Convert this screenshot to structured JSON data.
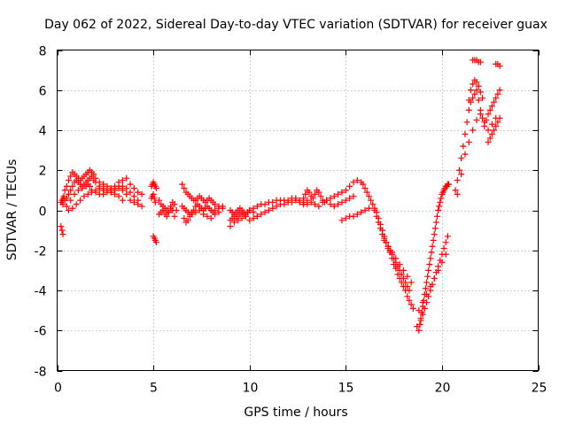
{
  "chart_data": {
    "type": "scatter",
    "title": "Day 062 of 2022, Sidereal Day-to-day VTEC variation (SDTVAR) for receiver guax",
    "xlabel": "GPS time / hours",
    "ylabel": "SDTVAR / TECUs",
    "xlim": [
      0,
      25
    ],
    "ylim": [
      -8,
      8
    ],
    "xticks": [
      0,
      5,
      10,
      15,
      20,
      25
    ],
    "xtick_labels": [
      "0",
      "5",
      "10",
      "15",
      "20",
      "25"
    ],
    "yticks": [
      -8,
      -6,
      -4,
      -2,
      0,
      2,
      4,
      6,
      8
    ],
    "ytick_labels": [
      "-8",
      "-6",
      "-4",
      "-2",
      "0",
      "2",
      "4",
      "6",
      "8"
    ],
    "grid": true,
    "marker": "plus",
    "color": "#ff0000",
    "series": [
      {
        "name": "SDTVAR",
        "x": [
          0.2,
          0.25,
          0.3,
          0.35,
          0.4,
          0.5,
          0.6,
          0.7,
          0.8,
          0.9,
          1.0,
          1.1,
          1.2,
          1.3,
          1.4,
          1.5,
          1.6,
          1.7,
          1.8,
          1.9,
          2.0,
          2.2,
          2.4,
          2.6,
          2.8,
          3.0,
          3.2,
          3.4,
          3.6,
          3.8,
          4.0,
          4.2,
          4.4,
          0.3,
          0.4,
          0.5,
          0.6,
          0.7,
          0.8,
          0.9,
          1.0,
          1.1,
          1.2,
          1.3,
          1.4,
          1.5,
          1.6,
          1.7,
          1.8,
          1.9,
          2.0,
          2.2,
          2.4,
          2.6,
          2.8,
          3.0,
          3.2,
          3.4,
          3.6,
          3.8,
          4.0,
          4.2,
          0.5,
          0.7,
          0.9,
          1.1,
          1.3,
          1.5,
          1.6,
          1.7,
          1.8,
          2.0,
          2.2,
          2.4,
          2.6,
          2.8,
          3.0,
          3.2,
          3.4,
          3.6,
          3.8,
          4.0,
          4.2,
          4.4,
          0.6,
          0.8,
          1.0,
          1.2,
          1.4,
          1.6,
          1.8,
          2.0,
          2.2,
          2.4,
          2.6,
          2.8,
          3.0,
          3.2,
          3.4,
          0.2,
          0.25,
          0.3,
          4.9,
          4.95,
          5.0,
          5.05,
          5.1,
          5.15,
          4.9,
          4.95,
          5.0,
          5.05,
          5.1,
          5.0,
          5.05,
          5.1,
          5.15,
          5.3,
          5.4,
          5.5,
          5.6,
          5.7,
          5.8,
          5.9,
          6.0,
          6.1,
          6.2,
          5.3,
          5.4,
          5.5,
          5.6,
          5.7,
          5.8,
          5.9,
          6.0,
          6.1,
          6.5,
          6.6,
          6.7,
          6.8,
          6.9,
          7.0,
          7.1,
          7.2,
          7.3,
          7.4,
          7.5,
          7.6,
          7.7,
          7.8,
          7.9,
          8.0,
          8.1,
          8.2,
          8.4,
          8.6,
          6.5,
          6.6,
          6.7,
          6.8,
          6.9,
          7.0,
          7.1,
          7.2,
          7.3,
          7.4,
          7.5,
          7.6,
          7.7,
          7.8,
          7.9,
          8.0,
          8.1,
          8.2,
          8.4,
          8.6,
          6.6,
          6.7,
          6.8,
          6.9,
          7.0,
          7.2,
          7.4,
          7.6,
          7.8,
          8.0,
          8.2,
          8.4,
          9.0,
          9.1,
          9.2,
          9.3,
          9.4,
          9.5,
          9.6,
          9.7,
          9.8,
          9.9,
          10.0,
          10.2,
          10.4,
          10.6,
          10.8,
          11.0,
          11.2,
          11.4,
          11.6,
          11.8,
          12.0,
          12.2,
          12.4,
          12.6,
          12.8,
          13.0,
          9.0,
          9.1,
          9.2,
          9.3,
          9.4,
          9.5,
          9.6,
          9.7,
          9.8,
          9.9,
          10.0,
          10.2,
          10.4,
          10.6,
          10.8,
          11.0,
          11.2,
          11.4,
          11.6,
          11.8,
          12.0,
          12.2,
          12.4,
          12.6,
          12.8,
          9.0,
          9.2,
          9.4,
          9.6,
          9.8,
          10.0,
          10.2,
          10.4,
          12.8,
          12.9,
          13.0,
          13.1,
          13.2,
          13.3,
          13.4,
          13.5,
          13.6,
          13.7,
          13.8,
          13.9,
          14.0,
          14.2,
          14.4,
          14.6,
          14.8,
          15.0,
          15.2,
          15.4,
          15.6,
          12.8,
          13.0,
          13.2,
          13.4,
          13.6,
          13.8,
          14.0,
          14.2,
          14.4,
          14.6,
          14.8,
          15.0,
          15.2,
          15.4,
          14.8,
          15.0,
          15.2,
          15.4,
          15.6,
          15.8,
          16.0,
          16.2,
          15.8,
          15.9,
          16.0,
          16.1,
          16.2,
          16.3,
          16.4,
          16.5,
          16.6,
          16.7,
          16.8,
          16.9,
          17.0,
          17.1,
          17.2,
          17.3,
          17.4,
          17.5,
          17.6,
          17.7,
          17.8,
          17.9,
          18.0,
          18.1,
          18.2,
          18.3,
          18.4,
          18.5,
          16.5,
          16.6,
          16.7,
          16.8,
          16.9,
          17.0,
          17.1,
          17.2,
          17.3,
          17.4,
          17.5,
          17.6,
          17.7,
          17.8,
          17.9,
          18.0,
          18.1,
          18.2,
          18.3,
          17.0,
          17.2,
          17.4,
          17.6,
          17.8,
          18.0,
          18.2,
          18.4,
          18.7,
          18.8,
          18.85,
          18.9,
          18.95,
          19.0,
          19.05,
          19.1,
          19.15,
          19.2,
          19.25,
          19.3,
          19.35,
          19.4,
          19.45,
          19.5,
          19.55,
          19.6,
          19.65,
          19.7,
          19.75,
          19.8,
          19.85,
          19.9,
          19.95,
          20.0,
          20.05,
          20.1,
          20.15,
          20.2,
          20.25,
          20.3,
          20.35,
          18.9,
          19.0,
          19.1,
          19.2,
          19.3,
          19.4,
          19.5,
          19.6,
          19.7,
          19.8,
          19.9,
          20.0,
          20.1,
          20.2,
          20.3,
          18.8,
          19.0,
          19.2,
          19.4,
          19.6,
          19.8,
          20.0,
          20.2,
          20.7,
          20.8,
          20.9,
          21.0,
          21.1,
          21.2,
          21.3,
          21.4,
          21.5,
          21.6,
          21.7,
          21.8,
          21.9,
          22.0,
          22.1,
          22.2,
          22.3,
          22.4,
          22.5,
          22.6,
          22.7,
          22.8,
          22.9,
          23.0,
          20.8,
          21.0,
          21.2,
          21.4,
          21.6,
          21.8,
          22.0,
          22.2,
          22.4,
          22.6,
          22.8,
          21.4,
          21.5,
          21.6,
          21.7,
          21.8,
          21.9,
          22.0,
          22.1,
          21.6,
          21.7,
          21.8,
          21.9,
          22.0,
          22.8,
          22.9,
          23.0,
          22.4,
          22.5,
          22.6,
          22.7,
          22.8,
          22.9,
          23.0
        ],
        "y": [
          0.4,
          0.5,
          0.6,
          0.7,
          1.0,
          1.2,
          1.5,
          1.7,
          1.9,
          1.8,
          1.7,
          1.6,
          1.5,
          1.6,
          1.7,
          1.8,
          1.9,
          2.0,
          1.9,
          1.8,
          1.6,
          1.4,
          1.3,
          1.2,
          1.1,
          1.2,
          1.4,
          1.5,
          1.6,
          1.3,
          1.1,
          0.9,
          0.8,
          0.3,
          0.5,
          0.6,
          0.8,
          1.0,
          1.2,
          1.4,
          1.5,
          1.4,
          1.3,
          1.2,
          1.3,
          1.4,
          1.5,
          1.6,
          1.7,
          1.5,
          1.4,
          1.2,
          1.0,
          1.0,
          0.9,
          1.0,
          1.1,
          1.2,
          1.1,
          0.9,
          0.7,
          0.5,
          0.2,
          0.5,
          0.8,
          1.0,
          1.1,
          1.2,
          1.3,
          1.2,
          1.0,
          0.9,
          0.8,
          0.8,
          0.9,
          1.0,
          1.1,
          1.2,
          1.0,
          0.8,
          0.5,
          0.4,
          0.3,
          0.2,
          0.0,
          0.1,
          0.3,
          0.5,
          0.7,
          0.8,
          0.9,
          1.0,
          1.1,
          1.1,
          1.0,
          0.9,
          0.8,
          0.7,
          0.5,
          -0.8,
          -1.0,
          -1.2,
          1.2,
          1.3,
          1.4,
          1.3,
          1.2,
          1.1,
          0.6,
          0.7,
          0.8,
          0.6,
          0.4,
          -1.3,
          -1.4,
          -1.5,
          -1.6,
          0.5,
          0.3,
          0.2,
          0.1,
          0.0,
          -0.1,
          0.2,
          0.4,
          0.3,
          0.0,
          -0.2,
          -0.1,
          0.0,
          -0.2,
          -0.3,
          -0.1,
          0.1,
          0.0,
          -0.3,
          1.3,
          1.1,
          0.9,
          0.8,
          0.7,
          0.6,
          0.5,
          0.5,
          0.6,
          0.7,
          0.6,
          0.5,
          0.4,
          0.5,
          0.6,
          0.5,
          0.4,
          0.3,
          0.2,
          0.1,
          0.2,
          0.1,
          0.0,
          -0.1,
          -0.2,
          -0.1,
          0.0,
          0.2,
          0.3,
          0.2,
          0.1,
          0.0,
          0.1,
          0.2,
          0.1,
          0.0,
          -0.1,
          0.0,
          0.1,
          0.2,
          -0.4,
          -0.6,
          -0.5,
          -0.3,
          -0.2,
          -0.1,
          0.0,
          -0.2,
          -0.3,
          -0.4,
          -0.2,
          -0.1,
          0.0,
          -0.1,
          -0.2,
          -0.1,
          0.0,
          0.1,
          0.0,
          -0.1,
          -0.2,
          -0.1,
          0.0,
          0.1,
          0.2,
          0.3,
          0.3,
          0.4,
          0.4,
          0.5,
          0.5,
          0.5,
          0.5,
          0.6,
          0.6,
          0.5,
          0.4,
          0.3,
          -0.5,
          -0.4,
          -0.3,
          -0.4,
          -0.3,
          -0.2,
          -0.1,
          -0.2,
          -0.3,
          -0.1,
          0.0,
          -0.1,
          -0.3,
          -0.2,
          -0.1,
          0.0,
          0.1,
          0.2,
          0.3,
          0.3,
          0.4,
          0.4,
          0.5,
          0.4,
          0.3,
          -0.8,
          -0.6,
          -0.5,
          -0.4,
          -0.3,
          -0.5,
          -0.4,
          -0.3,
          0.6,
          0.8,
          1.0,
          0.9,
          0.7,
          0.6,
          0.8,
          1.0,
          0.9,
          0.7,
          0.5,
          0.4,
          0.5,
          0.6,
          0.7,
          0.8,
          0.9,
          1.0,
          1.2,
          1.4,
          1.5,
          0.3,
          0.5,
          0.4,
          0.3,
          0.2,
          0.4,
          0.5,
          0.3,
          0.2,
          0.3,
          0.4,
          0.5,
          0.6,
          0.7,
          -0.5,
          -0.4,
          -0.3,
          -0.3,
          -0.2,
          -0.1,
          0.0,
          0.1,
          1.4,
          1.3,
          1.1,
          0.9,
          0.7,
          0.5,
          0.3,
          0.1,
          -0.1,
          -0.4,
          -0.7,
          -1.0,
          -1.3,
          -1.6,
          -1.9,
          -2.1,
          -2.4,
          -2.7,
          -2.9,
          -3.2,
          -3.4,
          -3.6,
          -3.8,
          -4.0,
          -4.3,
          -4.5,
          -4.7,
          -4.9,
          0.0,
          -0.3,
          -0.6,
          -0.9,
          -1.2,
          -1.4,
          -1.6,
          -1.8,
          -2.0,
          -2.2,
          -2.4,
          -2.6,
          -2.8,
          -3.0,
          -3.2,
          -3.4,
          -3.6,
          -3.8,
          -4.0,
          -1.5,
          -1.8,
          -2.1,
          -2.4,
          -2.7,
          -3.0,
          -3.3,
          -3.6,
          -5.8,
          -6.0,
          -5.7,
          -5.4,
          -5.1,
          -4.8,
          -4.5,
          -4.2,
          -3.9,
          -3.6,
          -3.3,
          -3.0,
          -2.7,
          -2.4,
          -2.1,
          -1.8,
          -1.5,
          -1.2,
          -0.9,
          -0.6,
          -0.3,
          0.0,
          0.2,
          0.4,
          0.6,
          0.8,
          0.9,
          1.0,
          1.1,
          1.2,
          1.2,
          1.3,
          1.3,
          -5.5,
          -5.2,
          -4.9,
          -4.6,
          -4.3,
          -4.0,
          -3.7,
          -3.4,
          -3.1,
          -2.8,
          -2.5,
          -2.2,
          -1.9,
          -1.6,
          -1.3,
          -5.0,
          -4.6,
          -4.2,
          -3.8,
          -3.4,
          -3.0,
          -2.6,
          -2.2,
          1.0,
          1.5,
          2.0,
          2.6,
          3.2,
          3.8,
          4.4,
          5.0,
          5.4,
          5.6,
          5.8,
          6.0,
          5.5,
          5.0,
          4.6,
          4.4,
          4.5,
          4.8,
          5.0,
          5.2,
          5.4,
          5.6,
          5.8,
          6.0,
          0.8,
          1.8,
          2.8,
          3.4,
          4.0,
          4.5,
          4.8,
          4.2,
          4.0,
          4.3,
          4.6,
          5.5,
          6.0,
          6.3,
          6.5,
          6.4,
          6.2,
          5.9,
          5.6,
          7.5,
          7.5,
          7.5,
          7.4,
          7.4,
          7.3,
          7.3,
          7.2,
          3.4,
          3.6,
          3.8,
          4.0,
          4.2,
          4.4,
          4.6
        ]
      }
    ]
  }
}
